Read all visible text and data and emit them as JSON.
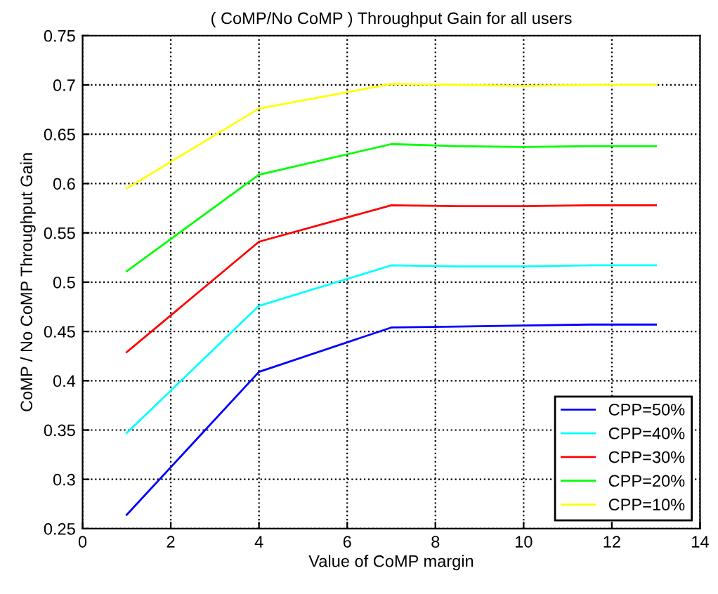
{
  "chart_data": {
    "type": "line",
    "title": "( CoMP/No CoMP ) Throughput Gain for all users",
    "xlabel": "Value of CoMP margin",
    "ylabel": "CoMP / No CoMP Throughput Gain",
    "x": [
      1,
      4,
      7,
      8.5,
      10,
      11.5,
      13
    ],
    "series": [
      {
        "name": "CPP=50%",
        "color": "#0000ff",
        "values": [
          0.264,
          0.409,
          0.454,
          0.455,
          0.456,
          0.457,
          0.457
        ]
      },
      {
        "name": "CPP=40%",
        "color": "#00ffff",
        "values": [
          0.347,
          0.476,
          0.517,
          0.516,
          0.516,
          0.517,
          0.517
        ]
      },
      {
        "name": "CPP=30%",
        "color": "#ff0000",
        "values": [
          0.429,
          0.541,
          0.578,
          0.577,
          0.577,
          0.578,
          0.578
        ]
      },
      {
        "name": "CPP=20%",
        "color": "#00ff00",
        "values": [
          0.511,
          0.609,
          0.64,
          0.638,
          0.637,
          0.638,
          0.638
        ]
      },
      {
        "name": "CPP=10%",
        "color": "#ffff00",
        "values": [
          0.595,
          0.676,
          0.701,
          0.7,
          0.699,
          0.7,
          0.7
        ]
      }
    ],
    "xlim": [
      0,
      14
    ],
    "xticks": [
      0,
      2,
      4,
      6,
      8,
      10,
      12,
      14
    ],
    "ylim": [
      0.25,
      0.75
    ],
    "yticks": [
      0.25,
      0.3,
      0.35,
      0.4,
      0.45,
      0.5,
      0.55,
      0.6,
      0.65,
      0.7,
      0.75
    ],
    "grid": true,
    "legend": "bottom right",
    "line_style": "solid"
  }
}
